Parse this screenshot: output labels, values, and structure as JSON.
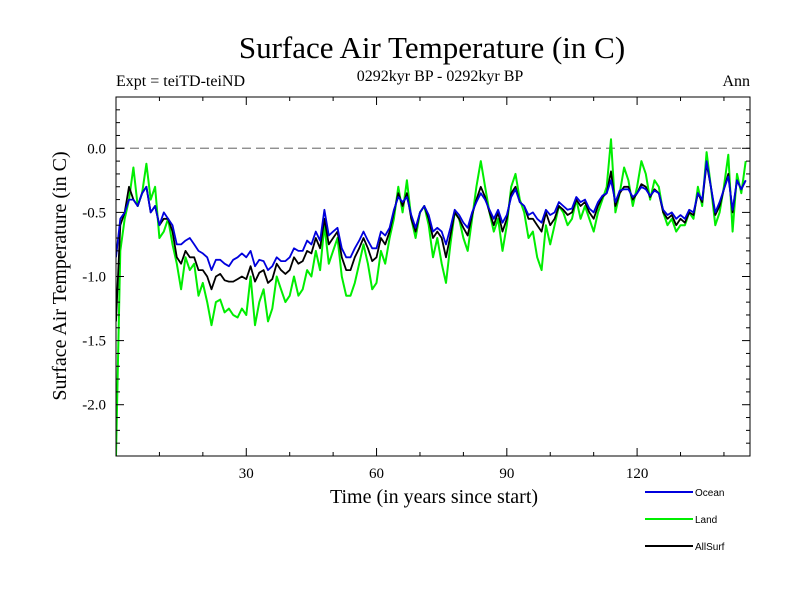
{
  "chart_data": {
    "type": "line",
    "title": "Surface Air Temperature (in C)",
    "left_label": "Expt = teiTD-teiND",
    "center_label": "0292kyr BP - 0292kyr BP",
    "right_label": "Ann",
    "xlabel": "Time (in years since start)",
    "ylabel": "Surface Air Temperature (in C)",
    "xlim": [
      0,
      146
    ],
    "ylim": [
      -2.4,
      0.4
    ],
    "xticks": [
      30,
      60,
      90,
      120
    ],
    "xtick_labels": [
      "30",
      "60",
      "90",
      "120"
    ],
    "yticks": [
      0.0,
      -0.5,
      -1.0,
      -1.5,
      -2.0
    ],
    "ytick_labels": [
      "0.0",
      "-0.5",
      "-1.0",
      "-1.5",
      "-2.0"
    ],
    "reference_line": {
      "y": 0.0,
      "style": "dashed",
      "color": "#808080"
    },
    "x_start": 0,
    "x_step": 1,
    "series": [
      {
        "name": "Land",
        "color": "#00ee00",
        "values": [
          -2.4,
          -0.8,
          -0.55,
          -0.4,
          -0.15,
          -0.45,
          -0.35,
          -0.12,
          -0.4,
          -0.3,
          -0.7,
          -0.65,
          -0.55,
          -0.75,
          -0.9,
          -1.1,
          -0.85,
          -0.95,
          -0.9,
          -1.15,
          -1.05,
          -1.2,
          -1.38,
          -1.2,
          -1.18,
          -1.28,
          -1.25,
          -1.3,
          -1.32,
          -1.25,
          -1.3,
          -1.0,
          -1.38,
          -1.2,
          -1.1,
          -1.35,
          -1.25,
          -1.0,
          -1.1,
          -1.2,
          -1.15,
          -1.0,
          -1.15,
          -1.1,
          -0.95,
          -1.0,
          -0.8,
          -0.95,
          -0.6,
          -0.9,
          -0.8,
          -0.7,
          -1.0,
          -1.15,
          -1.15,
          -1.05,
          -0.9,
          -0.75,
          -0.9,
          -1.1,
          -1.05,
          -0.8,
          -0.9,
          -0.7,
          -0.55,
          -0.3,
          -0.5,
          -0.25,
          -0.55,
          -0.7,
          -0.5,
          -0.45,
          -0.6,
          -0.85,
          -0.7,
          -0.9,
          -1.05,
          -0.75,
          -0.5,
          -0.55,
          -0.7,
          -0.8,
          -0.55,
          -0.3,
          -0.1,
          -0.3,
          -0.5,
          -0.65,
          -0.55,
          -0.8,
          -0.6,
          -0.3,
          -0.2,
          -0.4,
          -0.5,
          -0.7,
          -0.65,
          -0.85,
          -0.95,
          -0.6,
          -0.75,
          -0.6,
          -0.45,
          -0.5,
          -0.6,
          -0.55,
          -0.4,
          -0.55,
          -0.45,
          -0.55,
          -0.65,
          -0.5,
          -0.4,
          -0.3,
          0.07,
          -0.5,
          -0.35,
          -0.15,
          -0.25,
          -0.45,
          -0.3,
          -0.1,
          -0.2,
          -0.4,
          -0.25,
          -0.3,
          -0.5,
          -0.6,
          -0.55,
          -0.65,
          -0.6,
          -0.6,
          -0.5,
          -0.55,
          -0.3,
          -0.45,
          -0.03,
          -0.3,
          -0.6,
          -0.5,
          -0.3,
          -0.05,
          -0.65,
          -0.2,
          -0.35,
          -0.1
        ]
      },
      {
        "name": "AllSurf",
        "color": "#000000",
        "values": [
          -1.35,
          -0.6,
          -0.5,
          -0.3,
          -0.4,
          -0.45,
          -0.35,
          -0.3,
          -0.5,
          -0.45,
          -0.6,
          -0.55,
          -0.55,
          -0.65,
          -0.85,
          -0.9,
          -0.8,
          -0.85,
          -0.85,
          -0.95,
          -0.95,
          -1.0,
          -1.1,
          -1.0,
          -0.98,
          -1.03,
          -1.04,
          -1.04,
          -1.02,
          -1.0,
          -1.02,
          -0.92,
          -1.04,
          -0.97,
          -0.95,
          -1.05,
          -1.02,
          -0.9,
          -0.95,
          -0.98,
          -0.95,
          -0.85,
          -0.9,
          -0.88,
          -0.8,
          -0.82,
          -0.7,
          -0.78,
          -0.55,
          -0.75,
          -0.7,
          -0.65,
          -0.85,
          -0.95,
          -0.95,
          -0.85,
          -0.78,
          -0.7,
          -0.78,
          -0.88,
          -0.85,
          -0.7,
          -0.75,
          -0.65,
          -0.5,
          -0.35,
          -0.45,
          -0.35,
          -0.55,
          -0.65,
          -0.5,
          -0.45,
          -0.55,
          -0.7,
          -0.65,
          -0.7,
          -0.85,
          -0.68,
          -0.5,
          -0.55,
          -0.62,
          -0.68,
          -0.52,
          -0.4,
          -0.3,
          -0.38,
          -0.5,
          -0.6,
          -0.5,
          -0.65,
          -0.55,
          -0.35,
          -0.3,
          -0.42,
          -0.45,
          -0.55,
          -0.55,
          -0.6,
          -0.65,
          -0.5,
          -0.6,
          -0.55,
          -0.45,
          -0.48,
          -0.52,
          -0.5,
          -0.4,
          -0.45,
          -0.42,
          -0.5,
          -0.55,
          -0.45,
          -0.38,
          -0.35,
          -0.18,
          -0.45,
          -0.35,
          -0.3,
          -0.3,
          -0.4,
          -0.35,
          -0.28,
          -0.3,
          -0.38,
          -0.32,
          -0.35,
          -0.5,
          -0.55,
          -0.52,
          -0.6,
          -0.55,
          -0.58,
          -0.5,
          -0.52,
          -0.35,
          -0.42,
          -0.12,
          -0.3,
          -0.52,
          -0.45,
          -0.32,
          -0.2,
          -0.5,
          -0.25,
          -0.32,
          -0.25
        ]
      },
      {
        "name": "Ocean",
        "color": "#0000dd",
        "values": [
          -0.85,
          -0.55,
          -0.5,
          -0.4,
          -0.4,
          -0.45,
          -0.35,
          -0.3,
          -0.5,
          -0.45,
          -0.6,
          -0.5,
          -0.55,
          -0.6,
          -0.75,
          -0.75,
          -0.72,
          -0.7,
          -0.75,
          -0.8,
          -0.82,
          -0.85,
          -0.95,
          -0.87,
          -0.87,
          -0.9,
          -0.92,
          -0.87,
          -0.85,
          -0.82,
          -0.85,
          -0.8,
          -0.92,
          -0.87,
          -0.88,
          -0.95,
          -0.92,
          -0.85,
          -0.88,
          -0.88,
          -0.85,
          -0.78,
          -0.8,
          -0.8,
          -0.72,
          -0.75,
          -0.65,
          -0.72,
          -0.48,
          -0.68,
          -0.65,
          -0.62,
          -0.78,
          -0.85,
          -0.85,
          -0.78,
          -0.72,
          -0.65,
          -0.72,
          -0.78,
          -0.78,
          -0.65,
          -0.68,
          -0.62,
          -0.48,
          -0.38,
          -0.42,
          -0.38,
          -0.52,
          -0.62,
          -0.5,
          -0.45,
          -0.52,
          -0.65,
          -0.62,
          -0.65,
          -0.75,
          -0.62,
          -0.48,
          -0.52,
          -0.58,
          -0.62,
          -0.5,
          -0.42,
          -0.35,
          -0.4,
          -0.48,
          -0.55,
          -0.48,
          -0.58,
          -0.52,
          -0.38,
          -0.32,
          -0.42,
          -0.45,
          -0.52,
          -0.5,
          -0.55,
          -0.58,
          -0.48,
          -0.52,
          -0.5,
          -0.42,
          -0.45,
          -0.48,
          -0.47,
          -0.38,
          -0.42,
          -0.4,
          -0.47,
          -0.5,
          -0.42,
          -0.37,
          -0.35,
          -0.25,
          -0.42,
          -0.33,
          -0.32,
          -0.32,
          -0.38,
          -0.35,
          -0.3,
          -0.32,
          -0.37,
          -0.33,
          -0.35,
          -0.48,
          -0.52,
          -0.5,
          -0.55,
          -0.52,
          -0.55,
          -0.48,
          -0.5,
          -0.35,
          -0.4,
          -0.1,
          -0.3,
          -0.5,
          -0.42,
          -0.32,
          -0.22,
          -0.48,
          -0.25,
          -0.32,
          -0.25
        ]
      }
    ],
    "legend": {
      "placement": "bottom-right",
      "entries": [
        "Ocean",
        "Land",
        "AllSurf"
      ]
    }
  }
}
